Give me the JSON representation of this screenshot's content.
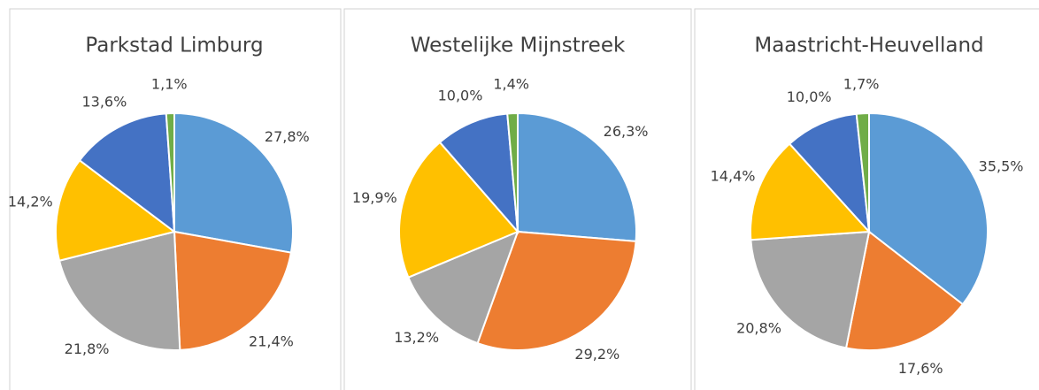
{
  "chart_data": [
    {
      "type": "pie",
      "title": "Parkstad Limburg",
      "values": [
        27.8,
        21.4,
        21.8,
        14.2,
        13.6,
        1.1
      ],
      "value_labels": [
        "27,8%",
        "21,4%",
        "21,8%",
        "14,2%",
        "13,6%",
        "1,1%"
      ],
      "colors": [
        "#5b9bd5",
        "#ed7d31",
        "#a5a5a5",
        "#ffc000",
        "#4472c4",
        "#70ad47"
      ]
    },
    {
      "type": "pie",
      "title": "Westelijke Mijnstreek",
      "values": [
        26.3,
        29.2,
        13.2,
        19.9,
        10.0,
        1.4
      ],
      "value_labels": [
        "26,3%",
        "29,2%",
        "13,2%",
        "19,9%",
        "10,0%",
        "1,4%"
      ],
      "colors": [
        "#5b9bd5",
        "#ed7d31",
        "#a5a5a5",
        "#ffc000",
        "#4472c4",
        "#70ad47"
      ]
    },
    {
      "type": "pie",
      "title": "Maastricht-Heuvelland",
      "values": [
        35.5,
        17.6,
        20.8,
        14.4,
        10.0,
        1.7
      ],
      "value_labels": [
        "35,5%",
        "17,6%",
        "20,8%",
        "14,4%",
        "10,0%",
        "1,7%"
      ],
      "colors": [
        "#5b9bd5",
        "#ed7d31",
        "#a5a5a5",
        "#ffc000",
        "#4472c4",
        "#70ad47"
      ]
    }
  ]
}
